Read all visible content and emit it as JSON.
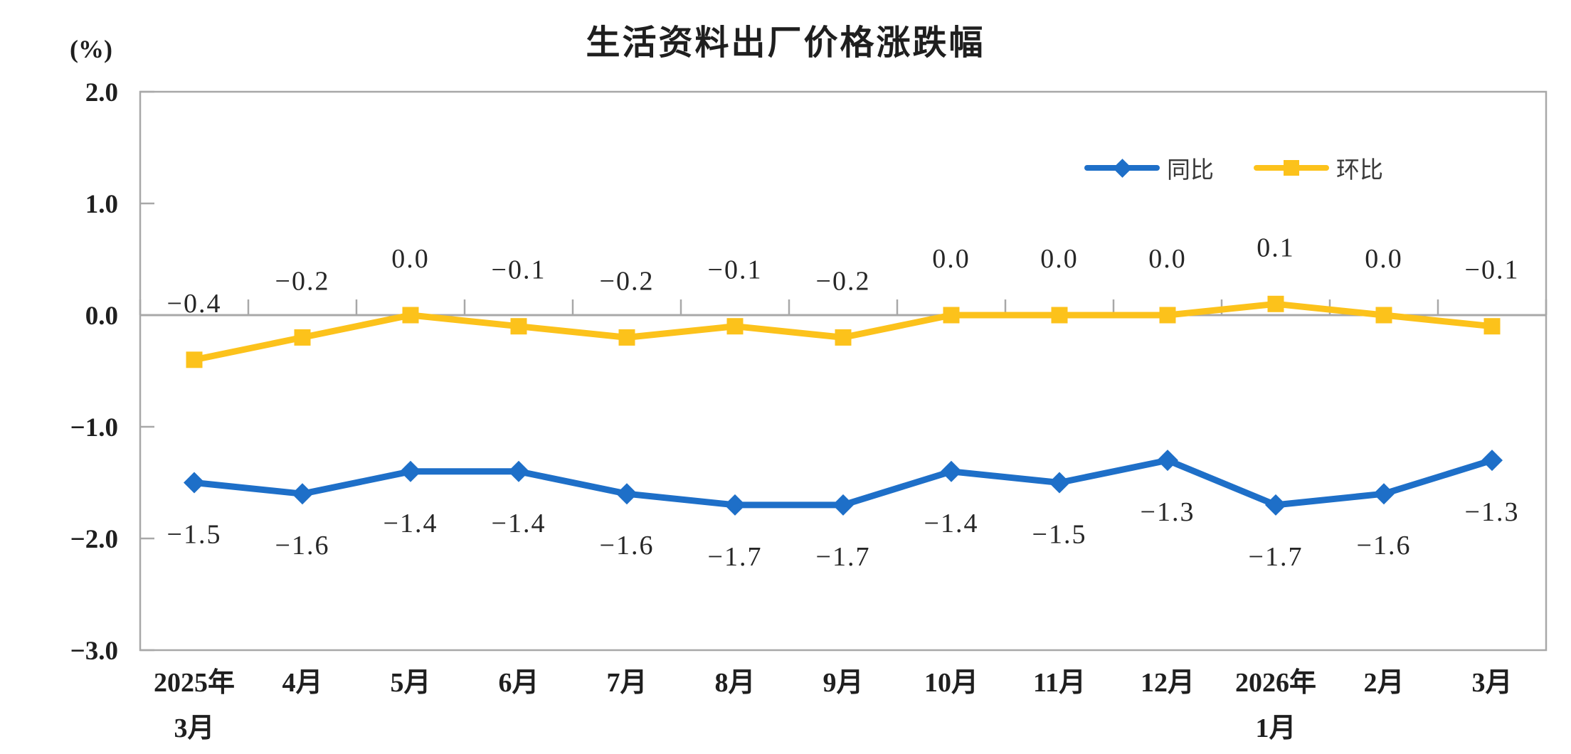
{
  "chart_data": {
    "type": "line",
    "title": "生活资料出厂价格涨跌幅",
    "unit_label": "(%)",
    "categories": [
      [
        "2025年",
        "3月"
      ],
      [
        "4月"
      ],
      [
        "5月"
      ],
      [
        "6月"
      ],
      [
        "7月"
      ],
      [
        "8月"
      ],
      [
        "9月"
      ],
      [
        "10月"
      ],
      [
        "11月"
      ],
      [
        "12月"
      ],
      [
        "2026年",
        "1月"
      ],
      [
        "2月"
      ],
      [
        "3月"
      ]
    ],
    "series": [
      {
        "name": "同比",
        "color": "#1E6FC8",
        "marker": "diamond",
        "label_position": "below",
        "values": [
          -1.5,
          -1.6,
          -1.4,
          -1.4,
          -1.6,
          -1.7,
          -1.7,
          -1.4,
          -1.5,
          -1.3,
          -1.7,
          -1.6,
          -1.3
        ]
      },
      {
        "name": "环比",
        "color": "#FCC21B",
        "marker": "square",
        "label_position": "above",
        "values": [
          -0.4,
          -0.2,
          0.0,
          -0.1,
          -0.2,
          -0.1,
          -0.2,
          0.0,
          0.0,
          0.0,
          0.1,
          0.0,
          -0.1
        ]
      }
    ],
    "y_ticks": [
      2.0,
      1.0,
      0.0,
      -1.0,
      -2.0,
      -3.0
    ],
    "ylim": [
      -3.0,
      2.0
    ],
    "x_axis_crosses_at": 0,
    "grid": "zero-line-only",
    "plot_border": true,
    "legend_position": "top-right-inside",
    "colors": {
      "axis": "#A8A8A8",
      "text": "#1F1F1F"
    }
  }
}
